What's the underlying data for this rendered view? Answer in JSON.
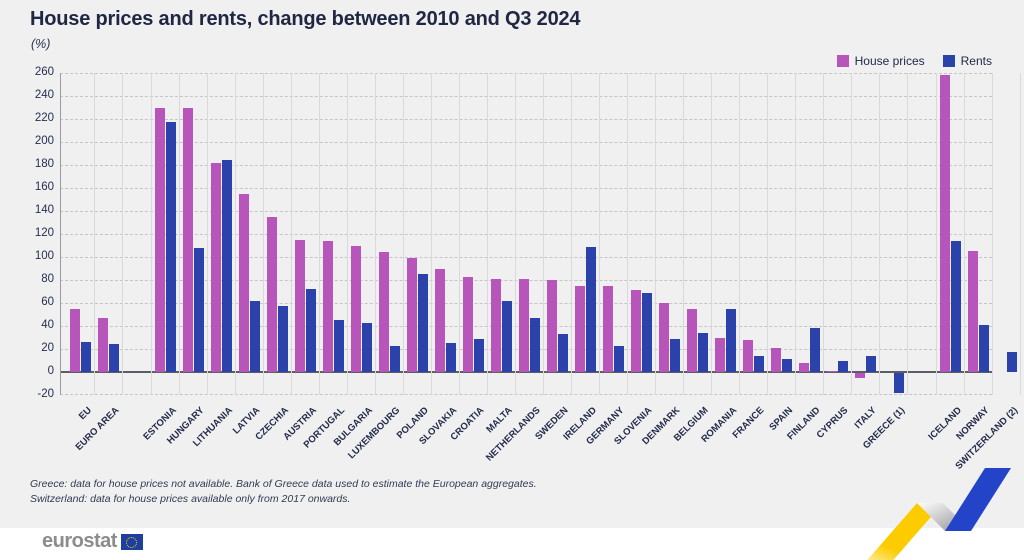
{
  "chart_data": {
    "type": "bar",
    "title": "House prices and rents, change between 2010 and Q3 2024",
    "subtitle": "(%)",
    "legend_position": "top-right",
    "grid": "horizontal-dashed",
    "y_axis": {
      "min": -20,
      "max": 260,
      "step": 20
    },
    "y_ticks": [
      260,
      240,
      220,
      200,
      180,
      160,
      140,
      120,
      100,
      80,
      60,
      40,
      20,
      0,
      -20
    ],
    "series": [
      {
        "name": "House prices",
        "color": "#b855ba"
      },
      {
        "name": "Rents",
        "color": "#2a42aa"
      }
    ],
    "groups": [
      {
        "name": "aggregates",
        "categories": [
          {
            "label": "EU",
            "house": 55,
            "rents": 26
          },
          {
            "label": "EURO AREA",
            "house": 47,
            "rents": 24
          }
        ]
      },
      {
        "name": "eu-members",
        "categories": [
          {
            "label": "ESTONIA",
            "house": 230,
            "rents": 217
          },
          {
            "label": "HUNGARY",
            "house": 230,
            "rents": 108
          },
          {
            "label": "LITHUANIA",
            "house": 182,
            "rents": 184
          },
          {
            "label": "LATVIA",
            "house": 155,
            "rents": 62
          },
          {
            "label": "CZECHIA",
            "house": 135,
            "rents": 57
          },
          {
            "label": "AUSTRIA",
            "house": 115,
            "rents": 72
          },
          {
            "label": "PORTUGAL",
            "house": 114,
            "rents": 45
          },
          {
            "label": "BULGARIA",
            "house": 110,
            "rents": 43
          },
          {
            "label": "LUXEMBOURG",
            "house": 104,
            "rents": 23
          },
          {
            "label": "POLAND",
            "house": 99,
            "rents": 85
          },
          {
            "label": "SLOVAKIA",
            "house": 90,
            "rents": 25
          },
          {
            "label": "CROATIA",
            "house": 83,
            "rents": 29
          },
          {
            "label": "MALTA",
            "house": 81,
            "rents": 62
          },
          {
            "label": "NETHERLANDS",
            "house": 81,
            "rents": 47
          },
          {
            "label": "SWEDEN",
            "house": 80,
            "rents": 33
          },
          {
            "label": "IRELAND",
            "house": 75,
            "rents": 109
          },
          {
            "label": "GERMANY",
            "house": 75,
            "rents": 23
          },
          {
            "label": "SLOVENIA",
            "house": 71,
            "rents": 69
          },
          {
            "label": "DENMARK",
            "house": 60,
            "rents": 29
          },
          {
            "label": "BELGIUM",
            "house": 55,
            "rents": 34
          },
          {
            "label": "ROMANIA",
            "house": 30,
            "rents": 55
          },
          {
            "label": "FRANCE",
            "house": 28,
            "rents": 14
          },
          {
            "label": "SPAIN",
            "house": 21,
            "rents": 11
          },
          {
            "label": "FINLAND",
            "house": 8,
            "rents": 38
          },
          {
            "label": "CYPRUS",
            "house": 1,
            "rents": 10
          },
          {
            "label": "ITALY",
            "house": -4,
            "rents": 14
          },
          {
            "label": "GREECE (1)",
            "house": null,
            "rents": -17
          }
        ]
      },
      {
        "name": "efta",
        "categories": [
          {
            "label": "ICELAND",
            "house": 258,
            "rents": 114
          },
          {
            "label": "NORWAY",
            "house": 105,
            "rents": 41
          },
          {
            "label": "SWITZERLAND (2)",
            "house": null,
            "rents": 17
          }
        ]
      }
    ]
  },
  "footnotes": [
    "Greece: data for house prices not available. Bank of Greece data used to estimate the European aggregates.",
    "Switzerland: data for house prices available only from 2017 onwards."
  ],
  "footer": {
    "logo_text": "eurostat"
  },
  "colors": {
    "background": "#f0f0f1",
    "house_prices": "#b855ba",
    "rents": "#2a42aa",
    "decor_yellow": "#fccc00",
    "decor_blue": "#2343c9"
  }
}
